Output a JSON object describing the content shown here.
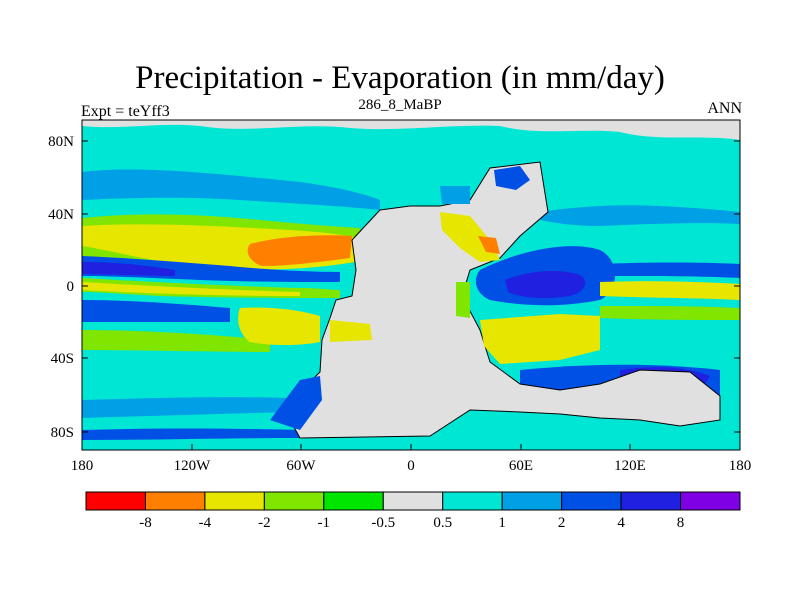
{
  "figure": {
    "title": "Precipitation - Evaporation (in mm/day)",
    "left_string": "Expt = teYff3",
    "center_string": "286_8_MaBP",
    "right_string": "ANN"
  },
  "map": {
    "lat_ticks": [
      "80N",
      "40N",
      "0",
      "40S",
      "80S"
    ],
    "lon_ticks": [
      "180",
      "120W",
      "60W",
      "0",
      "60E",
      "120E",
      "180"
    ],
    "ocean_color": "#00e5cc",
    "land_color": "#e0e0e0"
  },
  "colorbar": {
    "colors": [
      "#ff0000",
      "#ff8000",
      "#e6e600",
      "#80e600",
      "#00e600",
      "#e0e0e0",
      "#00e6d4",
      "#00a0e6",
      "#0050e6",
      "#2020e0",
      "#8000e6"
    ],
    "labels": [
      "-8",
      "-4",
      "-2",
      "-1",
      "-0.5",
      "0.5",
      "1",
      "2",
      "4",
      "8"
    ]
  }
}
